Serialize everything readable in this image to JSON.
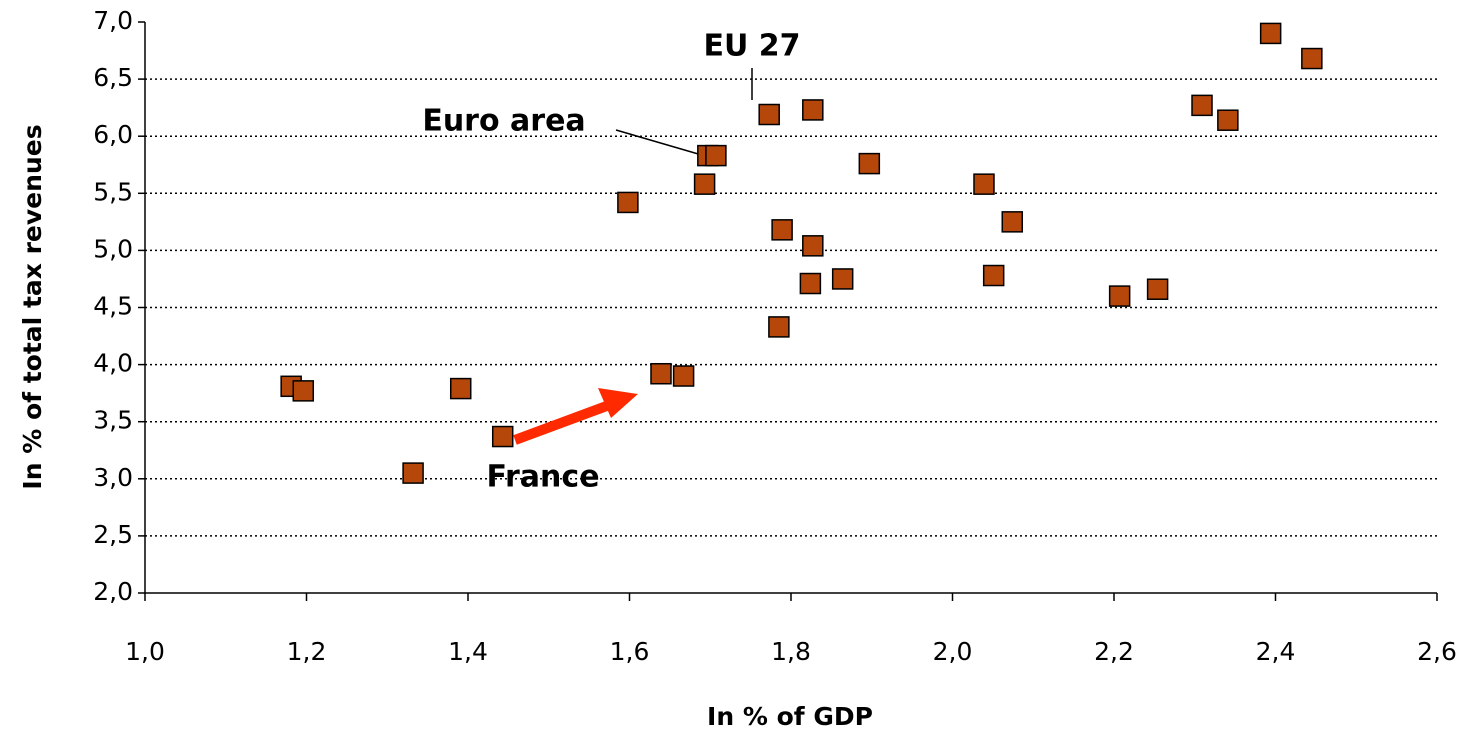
{
  "chart_data": {
    "type": "scatter",
    "x_label": "In % of GDP",
    "y_label": "In % of total tax revenues",
    "annotations": [
      "EU 27",
      "Euro area",
      "France"
    ],
    "color": "#b5470b",
    "grid": true,
    "xlim": [
      1.0,
      2.6
    ],
    "ylim": [
      2.0,
      7.0
    ],
    "xticks": [
      {
        "value": 1.0,
        "label": "1,0"
      },
      {
        "value": 1.2,
        "label": "1,2"
      },
      {
        "value": 1.4,
        "label": "1,4"
      },
      {
        "value": 1.6,
        "label": "1,6"
      },
      {
        "value": 1.8,
        "label": "1,8"
      },
      {
        "value": 2.0,
        "label": "2,0"
      },
      {
        "value": 2.2,
        "label": "2,2"
      },
      {
        "value": 2.4,
        "label": "2,4"
      },
      {
        "value": 2.6,
        "label": "2,6"
      }
    ],
    "yticks": [
      {
        "value": 2.0,
        "label": "2,0"
      },
      {
        "value": 2.5,
        "label": "2,5"
      },
      {
        "value": 3.0,
        "label": "3,0"
      },
      {
        "value": 3.5,
        "label": "3,5"
      },
      {
        "value": 4.0,
        "label": "4,0"
      },
      {
        "value": 4.5,
        "label": "4,5"
      },
      {
        "value": 5.0,
        "label": "5,0"
      },
      {
        "value": 5.5,
        "label": "5,5"
      },
      {
        "value": 6.0,
        "label": "6,0"
      },
      {
        "value": 6.5,
        "label": "6,5"
      },
      {
        "value": 7.0,
        "label": "7,0"
      }
    ],
    "x": [
      1.181,
      1.196,
      1.332,
      1.391,
      1.443,
      1.598,
      1.639,
      1.667,
      1.693,
      1.697,
      1.707,
      1.773,
      1.789,
      1.785,
      1.824,
      1.827,
      1.827,
      1.864,
      1.897,
      2.039,
      2.051,
      2.074,
      2.207,
      2.254,
      2.309,
      2.341,
      2.394,
      2.445
    ],
    "values": [
      3.81,
      3.77,
      3.05,
      3.79,
      3.37,
      5.42,
      3.92,
      3.9,
      5.58,
      5.83,
      5.83,
      6.19,
      5.18,
      4.33,
      4.71,
      5.04,
      6.23,
      4.75,
      5.76,
      5.58,
      4.78,
      5.25,
      4.6,
      4.66,
      6.27,
      6.14,
      6.9,
      6.68
    ]
  }
}
